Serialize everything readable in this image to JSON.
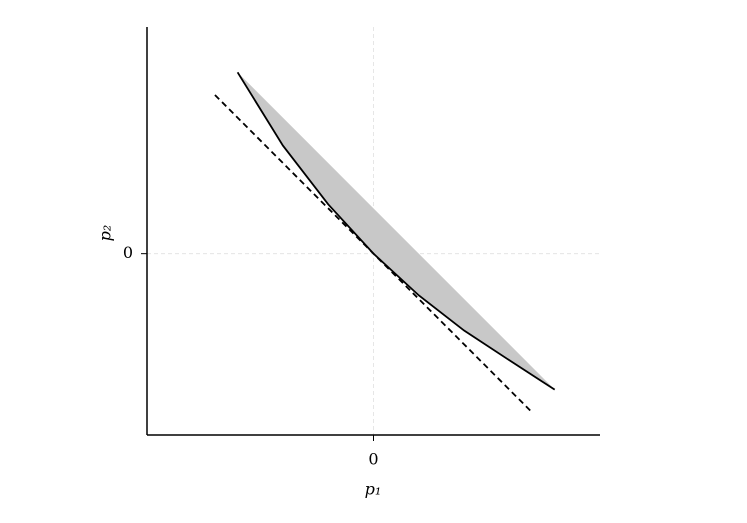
{
  "chart_data": {
    "type": "line",
    "xlabel": "p₁",
    "ylabel": "p₂",
    "xlim": [
      -1,
      1
    ],
    "ylim": [
      -1,
      1.25
    ],
    "xticks": [
      0
    ],
    "yticks": [
      0
    ],
    "grid": true,
    "series": [
      {
        "x": [
          -0.6,
          -0.4,
          -0.2,
          0,
          0.2,
          0.4,
          0.6,
          0.8
        ],
        "values": [
          1.0,
          0.596,
          0.272,
          0,
          -0.23,
          -0.424,
          -0.588,
          -0.75
        ],
        "color": "#000000",
        "style": "solid",
        "fill": "#c8c8c8"
      },
      {
        "x": [
          -0.7,
          0.7
        ],
        "values": [
          0.875,
          -0.875
        ],
        "color": "#000000",
        "style": "dashed"
      }
    ]
  }
}
